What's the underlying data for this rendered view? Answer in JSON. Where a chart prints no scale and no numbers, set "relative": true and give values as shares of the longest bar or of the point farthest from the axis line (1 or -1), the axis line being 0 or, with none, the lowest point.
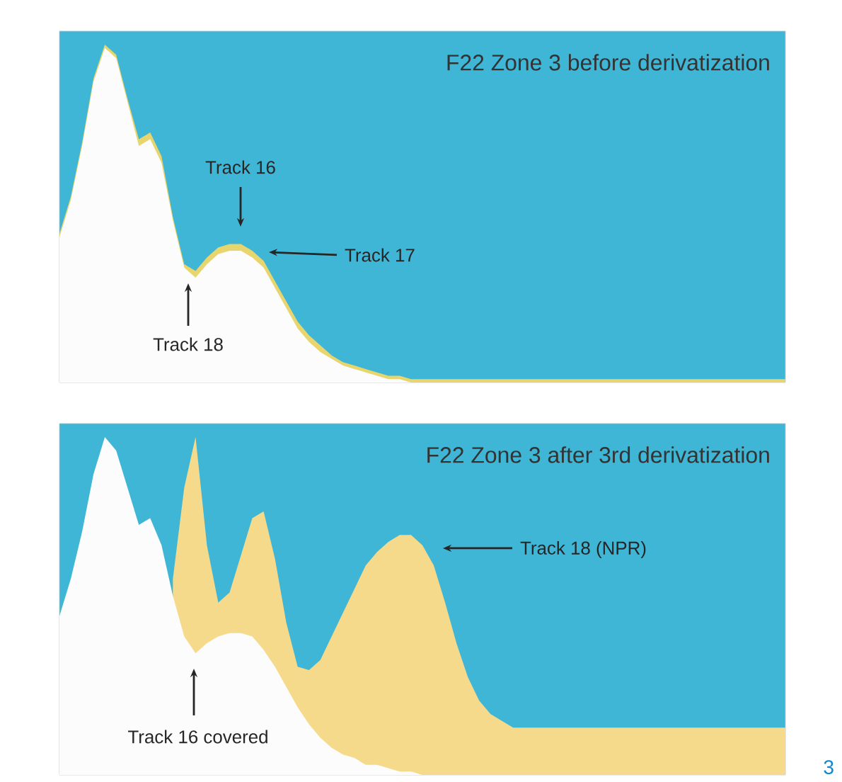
{
  "chart_data": [
    {
      "type": "area",
      "title": "F22 Zone 3 before derivatization",
      "relative": true,
      "annotations": [
        "Track 16",
        "Track 17",
        "Track 18"
      ],
      "categories": [
        null,
        null,
        null,
        null,
        null,
        null,
        null,
        null,
        null,
        null,
        null,
        null,
        null,
        null,
        null,
        null,
        null,
        null,
        null,
        null,
        null,
        null,
        null,
        null,
        null,
        null,
        null,
        null,
        null,
        null,
        null,
        null,
        null,
        null,
        null,
        null,
        null,
        null,
        null,
        null,
        null,
        null,
        null,
        null,
        null,
        null,
        null,
        null,
        null,
        null,
        null,
        null,
        null,
        null,
        null,
        null,
        null,
        null,
        null,
        null,
        null,
        null,
        null,
        null,
        null
      ],
      "series": [
        {
          "color": "#e8d56e",
          "values": [
            0.44,
            0.55,
            0.71,
            0.9,
            1.0,
            0.97,
            0.84,
            0.72,
            0.74,
            0.67,
            0.49,
            0.35,
            0.33,
            0.37,
            0.4,
            0.41,
            0.41,
            0.39,
            0.36,
            0.3,
            0.24,
            0.18,
            0.14,
            0.11,
            0.08,
            0.06,
            0.05,
            0.04,
            0.03,
            0.02,
            0.02,
            0.01,
            0.01,
            0.01,
            0.01,
            0.01,
            0.01,
            0.01,
            0.01,
            0.01,
            0.01,
            0.01,
            0.01,
            0.01,
            0.01,
            0.01,
            0.01,
            0.01,
            0.01,
            0.01,
            0.01,
            0.01,
            0.01,
            0.01,
            0.01,
            0.01,
            0.01,
            0.01,
            0.01,
            0.01,
            0.01,
            0.01,
            0.01,
            0.01,
            0.01
          ]
        },
        {
          "color": "#fcfcfc",
          "values": [
            0.43,
            0.54,
            0.7,
            0.89,
            0.99,
            0.96,
            0.83,
            0.7,
            0.72,
            0.65,
            0.48,
            0.34,
            0.31,
            0.35,
            0.38,
            0.39,
            0.39,
            0.37,
            0.34,
            0.28,
            0.22,
            0.16,
            0.12,
            0.09,
            0.07,
            0.05,
            0.04,
            0.03,
            0.02,
            0.01,
            0.01,
            0,
            0,
            0,
            0,
            0,
            0,
            0,
            0,
            0,
            0,
            0,
            0,
            0,
            0,
            0,
            0,
            0,
            0,
            0,
            0,
            0,
            0,
            0,
            0,
            0,
            0,
            0,
            0,
            0,
            0,
            0,
            0,
            0,
            0
          ]
        }
      ]
    },
    {
      "type": "area",
      "title": "F22 Zone 3 after 3rd derivatization",
      "relative": true,
      "annotations": [
        "Track 18 (NPR)",
        "Track 16 covered",
        "3"
      ],
      "categories": [
        null,
        null,
        null,
        null,
        null,
        null,
        null,
        null,
        null,
        null,
        null,
        null,
        null,
        null,
        null,
        null,
        null,
        null,
        null,
        null,
        null,
        null,
        null,
        null,
        null,
        null,
        null,
        null,
        null,
        null,
        null,
        null,
        null,
        null,
        null,
        null,
        null,
        null,
        null,
        null,
        null,
        null,
        null,
        null,
        null,
        null,
        null,
        null,
        null,
        null,
        null,
        null,
        null,
        null,
        null,
        null,
        null,
        null,
        null,
        null,
        null,
        null,
        null,
        null,
        null
      ],
      "series": [
        {
          "color": "#f5da8c",
          "values": [
            null,
            null,
            null,
            null,
            null,
            null,
            null,
            null,
            null,
            null,
            0.58,
            0.85,
            1.0,
            0.68,
            0.51,
            0.54,
            0.65,
            0.76,
            0.78,
            0.64,
            0.45,
            0.32,
            0.31,
            0.34,
            0.41,
            0.48,
            0.55,
            0.62,
            0.66,
            0.69,
            0.71,
            0.71,
            0.68,
            0.62,
            0.51,
            0.39,
            0.29,
            0.22,
            0.18,
            0.16,
            0.14,
            0.14,
            0.14,
            0.14,
            0.14,
            0.14,
            0.14,
            0.14,
            0.14,
            0.14,
            0.14,
            0.14,
            0.14,
            0.14,
            0.14,
            0.14,
            0.14,
            0.14,
            0.14,
            0.14,
            0.14,
            0.14,
            0.14,
            0.14,
            0.14
          ]
        },
        {
          "color": "#fcfcfc",
          "values": [
            0.47,
            0.58,
            0.72,
            0.89,
            1.0,
            0.96,
            0.85,
            0.74,
            0.76,
            0.68,
            0.53,
            0.41,
            0.36,
            0.39,
            0.41,
            0.42,
            0.42,
            0.41,
            0.37,
            0.32,
            0.26,
            0.2,
            0.15,
            0.11,
            0.08,
            0.06,
            0.05,
            0.03,
            0.03,
            0.02,
            0.01,
            0.01,
            0,
            0,
            0,
            0,
            0,
            0,
            0,
            0,
            0,
            0,
            0,
            0,
            0,
            0,
            0,
            0,
            0,
            0,
            0,
            0,
            0,
            0,
            0,
            0,
            0,
            0,
            0,
            0,
            0,
            0,
            0,
            0,
            0
          ]
        }
      ]
    }
  ]
}
